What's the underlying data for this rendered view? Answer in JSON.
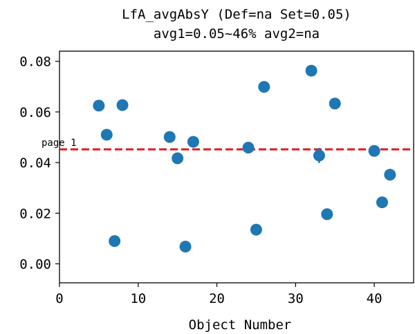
{
  "chart_data": {
    "type": "scatter",
    "title_line1": "LfA_avgAbsY (Def=na Set=0.05)",
    "title_line2": "avg1=0.05~46% avg2=na",
    "xlabel": "Object Number",
    "ylabel": "",
    "xlim": [
      0,
      45
    ],
    "ylim": [
      -0.0075,
      0.084
    ],
    "xticks": [
      0,
      10,
      20,
      30,
      40
    ],
    "xtick_labels": [
      "0",
      "10",
      "20",
      "30",
      "40"
    ],
    "yticks": [
      0.0,
      0.02,
      0.04,
      0.06,
      0.08
    ],
    "ytick_labels": [
      "0.00",
      "0.02",
      "0.04",
      "0.06",
      "0.08"
    ],
    "grid": false,
    "reference_line": {
      "y": 0.0452,
      "color": "#e31a1c",
      "style": "dashed"
    },
    "annotation": {
      "text": "page 1",
      "x": 0,
      "y": 0.0452
    },
    "marker_color": "#1f77b4",
    "points": [
      {
        "x": 5,
        "y": 0.0625
      },
      {
        "x": 6,
        "y": 0.051
      },
      {
        "x": 7,
        "y": 0.009
      },
      {
        "x": 8,
        "y": 0.0627
      },
      {
        "x": 14,
        "y": 0.0501
      },
      {
        "x": 15,
        "y": 0.0417
      },
      {
        "x": 16,
        "y": 0.0068
      },
      {
        "x": 17,
        "y": 0.0482
      },
      {
        "x": 24,
        "y": 0.0459
      },
      {
        "x": 25,
        "y": 0.0135
      },
      {
        "x": 26,
        "y": 0.0699
      },
      {
        "x": 32,
        "y": 0.0763
      },
      {
        "x": 33,
        "y": 0.0428,
        "err": 0.003
      },
      {
        "x": 34,
        "y": 0.0196
      },
      {
        "x": 35,
        "y": 0.0633
      },
      {
        "x": 40,
        "y": 0.0446
      },
      {
        "x": 41,
        "y": 0.0243
      },
      {
        "x": 42,
        "y": 0.0352
      }
    ]
  }
}
